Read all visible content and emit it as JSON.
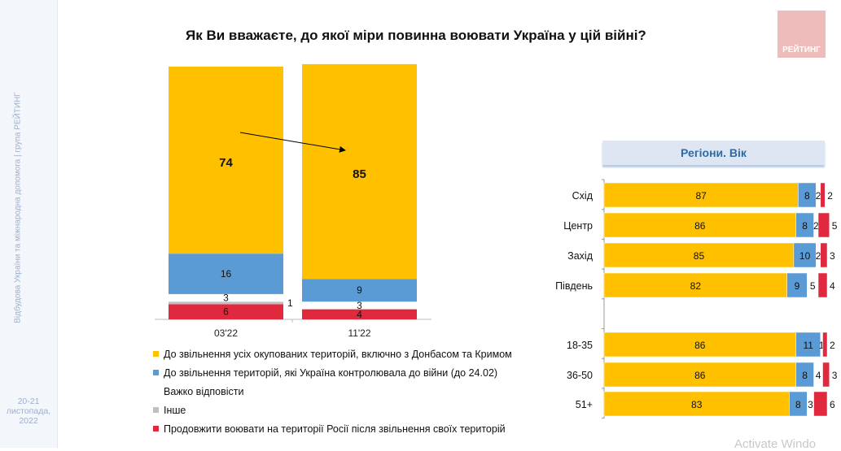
{
  "sidebar": {
    "vertical_text": "Відбудова України та міжнародна допомога | група РЕЙТИНГ",
    "date_lines": [
      "20-21",
      "листопада,",
      "2022"
    ]
  },
  "logo_text": "РЕЙТИНГ",
  "watermark": "Activate Windo",
  "colors": {
    "yellow": "#FFC000",
    "blue": "#5B9BD5",
    "white": "#FFFFFF",
    "gray": "#BFBFBF",
    "red": "#E0293F"
  },
  "chart_data": [
    {
      "type": "bar",
      "stacked": true,
      "orientation": "vertical",
      "title": "Як Ви вважаєте, до якої міри повинна воювати Україна у цій війні?",
      "categories": [
        "03'22",
        "11'22"
      ],
      "series": [
        {
          "name": "До звільнення усіх окупованих територій, включно з Донбасом та Кримом",
          "color": "#FFC000",
          "values": [
            74,
            85
          ]
        },
        {
          "name": "До звільнення територій, які Україна контролювала до війни (до 24.02)",
          "color": "#5B9BD5",
          "values": [
            16,
            9
          ]
        },
        {
          "name": "Важко відповісти",
          "color": "#FFFFFF",
          "values": [
            3,
            3
          ]
        },
        {
          "name": "Інше",
          "color": "#BFBFBF",
          "values": [
            1,
            0
          ]
        },
        {
          "name": "Продовжити воювати на території Росії після звільнення своїх територій",
          "color": "#E0293F",
          "values": [
            6,
            4
          ]
        }
      ],
      "ylim": [
        0,
        100
      ],
      "annotation": "arrow from 74 to 85"
    },
    {
      "type": "bar",
      "stacked": true,
      "orientation": "horizontal",
      "title": "Регіони. Вік",
      "categories": [
        "Схід",
        "Центр",
        "Захід",
        "Південь",
        "",
        "18-35",
        "36-50",
        "51+"
      ],
      "series": [
        {
          "name": "До звільнення усіх окупованих територій",
          "color": "#FFC000",
          "values": [
            87,
            86,
            85,
            82,
            null,
            86,
            86,
            83
          ]
        },
        {
          "name": "До звільнення територій до 24.02",
          "color": "#5B9BD5",
          "values": [
            8,
            8,
            10,
            9,
            null,
            11,
            8,
            8
          ]
        },
        {
          "name": "Важко відповісти",
          "color": "#FFFFFF",
          "values": [
            2,
            2,
            2,
            5,
            null,
            1,
            4,
            3
          ]
        },
        {
          "name": "Продовжити воювати на території Росії",
          "color": "#E0293F",
          "values": [
            2,
            5,
            3,
            4,
            null,
            2,
            3,
            6
          ]
        }
      ],
      "xlim": [
        0,
        100
      ]
    }
  ]
}
